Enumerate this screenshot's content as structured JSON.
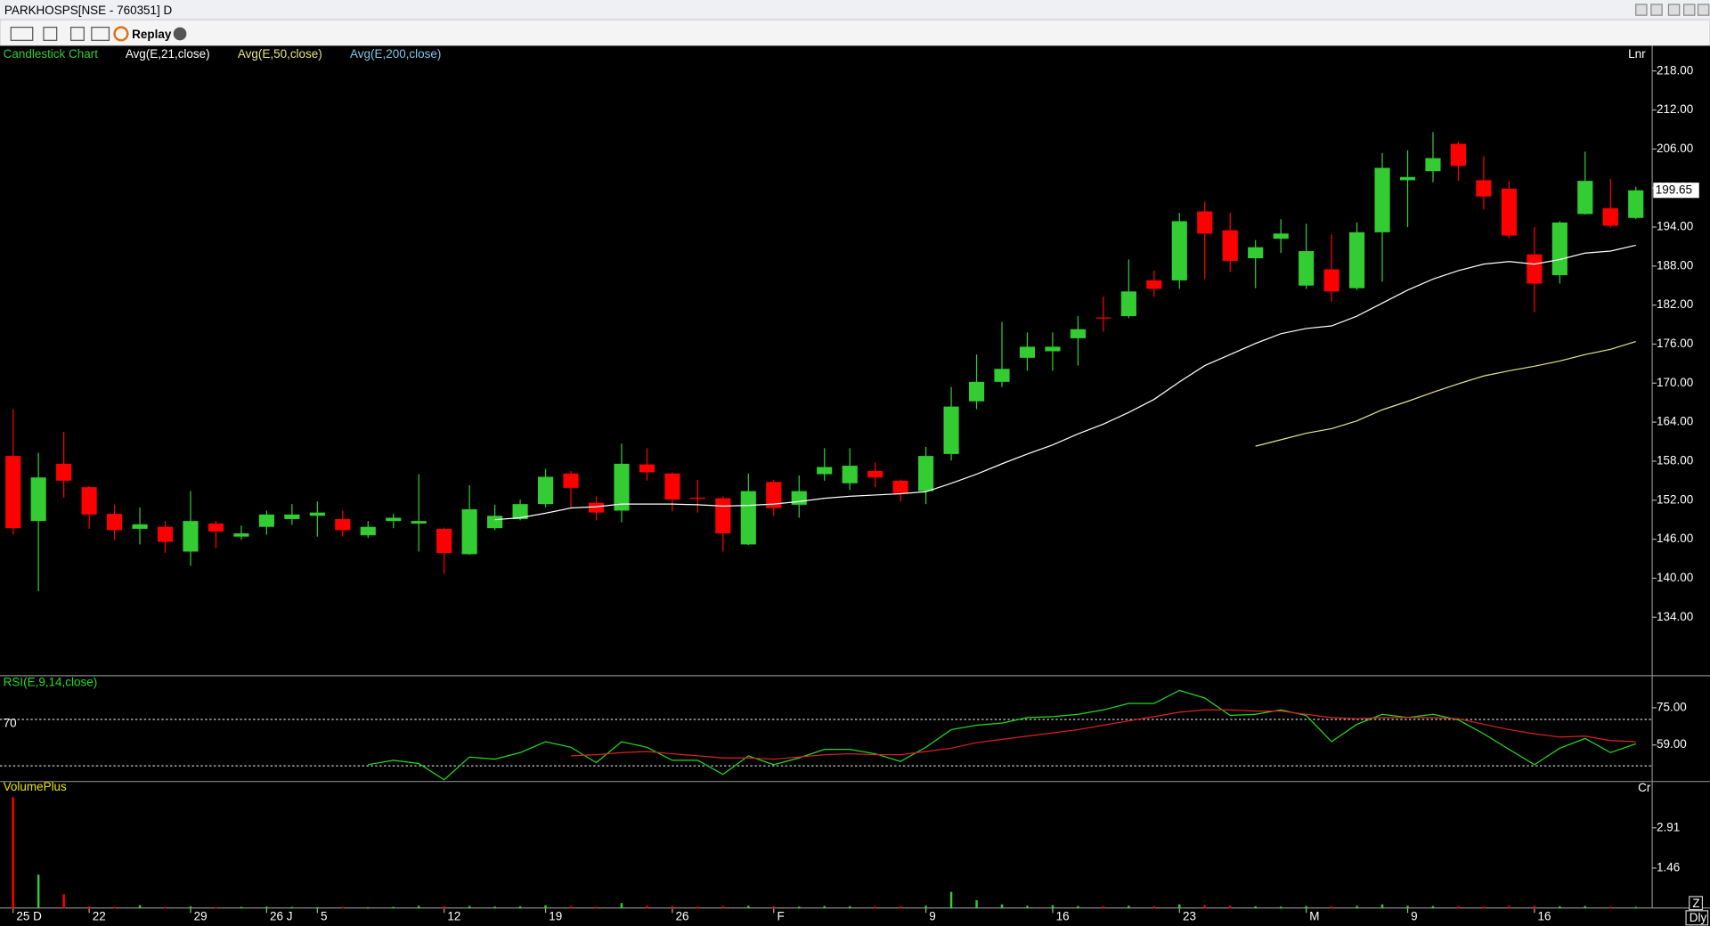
{
  "window": {
    "title": "PARKHOSPS[NSE - 760351] D",
    "replay": "Replay",
    "scale_label": "Lnr",
    "unit_label": "Cr",
    "zoom_label": "Z",
    "period_label": "Dly"
  },
  "chart_data": [
    {
      "type": "candlestick",
      "title": "Candlestick Chart",
      "up_color": "#33cc33",
      "down_color": "#ff0000",
      "categories": [
        "25 D",
        null,
        null,
        "22",
        null,
        null,
        null,
        "29",
        null,
        null,
        "26 J",
        null,
        "5",
        null,
        null,
        null,
        null,
        "12",
        null,
        null,
        null,
        "19",
        null,
        null,
        null,
        null,
        "26",
        null,
        null,
        null,
        "F",
        null,
        null,
        null,
        null,
        null,
        "9",
        null,
        null,
        null,
        null,
        "16",
        null,
        null,
        null,
        null,
        "23",
        null,
        null,
        null,
        null,
        "M",
        null,
        null,
        null,
        "9",
        null,
        null,
        null,
        null,
        "16",
        null,
        null,
        null,
        null
      ],
      "open": [
        158.8,
        148.8,
        157.6,
        154.0,
        149.9,
        147.6,
        147.9,
        144.1,
        148.4,
        146.4,
        147.9,
        149.1,
        149.6,
        149.1,
        146.6,
        148.8,
        148.4,
        147.6,
        143.7,
        147.7,
        149.1,
        151.4,
        156.1,
        151.6,
        150.4,
        157.5,
        156.1,
        152.4,
        152.3,
        145.2,
        154.8,
        151.3,
        156.0,
        154.6,
        156.5,
        155.0,
        153.4,
        159.1,
        167.2,
        170.2,
        173.9,
        174.9,
        176.9,
        180.1,
        180.3,
        185.8,
        185.8,
        196.4,
        193.5,
        189.2,
        192.2,
        185.0,
        187.5,
        184.6,
        193.2,
        201.2,
        202.6,
        206.8,
        201.2,
        199.9,
        189.8,
        186.6,
        196.0,
        196.9,
        195.4
      ],
      "high": [
        166.0,
        159.3,
        162.5,
        154.2,
        151.3,
        150.9,
        148.8,
        153.4,
        148.8,
        148.1,
        150.4,
        151.4,
        151.8,
        150.4,
        148.8,
        149.9,
        156.0,
        147.8,
        154.3,
        151.3,
        152.1,
        156.8,
        156.5,
        152.6,
        160.7,
        160.0,
        156.3,
        155.1,
        152.6,
        156.1,
        155.1,
        155.8,
        160.0,
        160.0,
        157.8,
        155.2,
        160.2,
        169.4,
        174.4,
        179.4,
        177.8,
        177.8,
        180.3,
        183.3,
        189.0,
        187.3,
        196.2,
        197.9,
        196.2,
        192.0,
        195.2,
        194.5,
        192.9,
        194.7,
        205.4,
        205.8,
        208.6,
        207.1,
        204.9,
        201.1,
        194.0,
        194.9,
        205.6,
        201.4,
        200.2
      ],
      "low": [
        146.7,
        138.0,
        152.4,
        147.6,
        145.9,
        145.2,
        143.9,
        141.9,
        144.6,
        145.9,
        146.7,
        148.2,
        146.4,
        146.4,
        146.2,
        147.7,
        144.1,
        140.7,
        143.6,
        147.4,
        148.9,
        150.9,
        150.9,
        148.9,
        148.6,
        155.0,
        150.3,
        150.1,
        144.1,
        145.1,
        149.6,
        149.3,
        155.0,
        153.6,
        154.0,
        151.8,
        151.4,
        158.1,
        166.0,
        169.4,
        171.9,
        171.9,
        172.7,
        177.9,
        180.0,
        183.3,
        184.5,
        186.0,
        187.1,
        184.6,
        190.0,
        184.5,
        182.5,
        184.3,
        185.6,
        194.0,
        200.9,
        201.1,
        196.7,
        192.3,
        180.9,
        185.3,
        195.9,
        193.9,
        195.2
      ],
      "close": [
        147.7,
        155.5,
        155.0,
        149.8,
        147.4,
        148.3,
        145.6,
        148.8,
        147.2,
        146.9,
        149.8,
        149.8,
        150.1,
        147.4,
        147.9,
        149.3,
        148.8,
        143.9,
        150.6,
        149.6,
        151.4,
        155.6,
        153.9,
        150.1,
        157.6,
        156.3,
        152.1,
        152.3,
        146.9,
        153.4,
        150.8,
        153.4,
        157.1,
        157.3,
        155.5,
        153.1,
        158.8,
        166.4,
        170.2,
        172.2,
        175.6,
        175.6,
        178.3,
        180.0,
        184.1,
        184.5,
        194.9,
        193.0,
        188.8,
        190.9,
        193.0,
        190.3,
        184.1,
        193.2,
        203.1,
        201.7,
        204.6,
        203.4,
        198.7,
        192.7,
        185.3,
        194.7,
        201.1,
        194.2,
        199.65
      ],
      "series": [
        {
          "name": "Avg(E,21,close)",
          "color": "#ffffff",
          "values": [
            null,
            null,
            null,
            null,
            null,
            null,
            null,
            null,
            null,
            null,
            null,
            null,
            null,
            null,
            null,
            null,
            null,
            null,
            null,
            149.0,
            149.3,
            150.0,
            150.8,
            151.0,
            151.4,
            151.4,
            151.4,
            151.3,
            151.1,
            151.2,
            151.4,
            151.8,
            152.3,
            152.6,
            152.8,
            153.0,
            153.3,
            154.6,
            156.0,
            157.6,
            159.1,
            160.5,
            162.2,
            163.7,
            165.5,
            167.5,
            170.2,
            172.7,
            174.4,
            176.1,
            177.6,
            178.4,
            178.8,
            180.3,
            182.3,
            184.3,
            186.0,
            187.3,
            188.3,
            188.7,
            188.3,
            189.0,
            190.0,
            190.3,
            191.2
          ]
        },
        {
          "name": "Avg(E,50,close)",
          "color": "#e6e68c",
          "values": [
            null,
            null,
            null,
            null,
            null,
            null,
            null,
            null,
            null,
            null,
            null,
            null,
            null,
            null,
            null,
            null,
            null,
            null,
            null,
            null,
            null,
            null,
            null,
            null,
            null,
            null,
            null,
            null,
            null,
            null,
            null,
            null,
            null,
            null,
            null,
            null,
            null,
            null,
            null,
            null,
            null,
            null,
            null,
            null,
            null,
            null,
            null,
            null,
            null,
            160.3,
            161.3,
            162.3,
            163.0,
            164.2,
            165.9,
            167.2,
            168.6,
            169.9,
            171.1,
            171.9,
            172.6,
            173.4,
            174.4,
            175.2,
            176.4
          ]
        },
        {
          "name": "Avg(E,200,close)",
          "color": "#80c8ec",
          "values": [
            null,
            null,
            null,
            null,
            null,
            null,
            null,
            null,
            null,
            null,
            null,
            null,
            null,
            null,
            null,
            null,
            null,
            null,
            null,
            null,
            null,
            null,
            null,
            null,
            null,
            null,
            null,
            null,
            null,
            null,
            null,
            null,
            null,
            null,
            null,
            null,
            null,
            null,
            null,
            null,
            null,
            null,
            null,
            null,
            null,
            null,
            null,
            null,
            null,
            null,
            null,
            null,
            null,
            null,
            null,
            null,
            null,
            null,
            null,
            null,
            null,
            null,
            null,
            null,
            null
          ]
        }
      ],
      "ylim": [
        125.1,
        221.7
      ],
      "yticks": [
        {
          "value": 218,
          "label": "218.00"
        },
        {
          "value": 212,
          "label": "212.00"
        },
        {
          "value": 206,
          "label": "206.00"
        },
        {
          "value": 200,
          "label": "200.00"
        },
        {
          "value": 194,
          "label": "194.00"
        },
        {
          "value": 188,
          "label": "188.00"
        },
        {
          "value": 182,
          "label": "182.00"
        },
        {
          "value": 176,
          "label": "176.00"
        },
        {
          "value": 170,
          "label": "170.00"
        },
        {
          "value": 164,
          "label": "164.00"
        },
        {
          "value": 158,
          "label": "158.00"
        },
        {
          "value": 152,
          "label": "152.00"
        },
        {
          "value": 146,
          "label": "146.00"
        },
        {
          "value": 140,
          "label": "140.00"
        },
        {
          "value": 134,
          "label": "134.00"
        }
      ]
    },
    {
      "type": "line",
      "title": "RSI(E,9,14,close)",
      "upper_level": 70,
      "lower_level": 50,
      "series": [
        {
          "color": "#22dd22",
          "values": [
            null,
            null,
            null,
            null,
            null,
            null,
            null,
            null,
            null,
            null,
            null,
            null,
            null,
            null,
            50.5,
            52.4,
            51.0,
            44.0,
            53.8,
            52.9,
            55.7,
            60.4,
            58.0,
            51.4,
            60.4,
            58.0,
            52.4,
            52.4,
            46.3,
            54.3,
            50.5,
            53.4,
            57.1,
            57.1,
            55.2,
            51.9,
            58.0,
            65.6,
            67.5,
            68.4,
            70.8,
            71.2,
            72.2,
            74.1,
            76.9,
            76.9,
            82.5,
            79.2,
            71.7,
            72.2,
            74.1,
            71.7,
            60.4,
            67.9,
            72.2,
            70.8,
            72.2,
            69.8,
            63.8,
            57.1,
            50.5,
            57.6,
            61.8,
            55.7,
            59.5
          ]
        },
        {
          "color": "#dd2222",
          "values": [
            null,
            null,
            null,
            null,
            null,
            null,
            null,
            null,
            null,
            null,
            null,
            null,
            null,
            null,
            null,
            null,
            null,
            null,
            null,
            null,
            null,
            null,
            54.3,
            54.8,
            55.7,
            56.2,
            55.2,
            54.3,
            53.4,
            53.4,
            52.9,
            53.8,
            54.8,
            55.2,
            54.8,
            54.8,
            56.2,
            57.6,
            60.0,
            61.4,
            62.8,
            64.2,
            65.6,
            67.5,
            69.4,
            71.2,
            73.1,
            74.1,
            74.1,
            73.6,
            73.6,
            72.2,
            70.8,
            70.3,
            70.8,
            70.8,
            70.8,
            70.3,
            67.9,
            65.6,
            63.8,
            62.4,
            62.8,
            60.9,
            60.4
          ]
        }
      ],
      "ylim": [
        43.5,
        88.6
      ],
      "yticks": [
        {
          "value": 75,
          "label": "75.00"
        },
        {
          "value": 59,
          "label": "59.00"
        }
      ]
    },
    {
      "type": "bar",
      "title": "VolumePlus",
      "values": [
        4.01,
        1.22,
        0.52,
        0.08,
        0.06,
        0.12,
        0.06,
        0.08,
        0.05,
        0.06,
        0.07,
        0.06,
        0.05,
        0.06,
        0.05,
        0.06,
        0.1,
        0.08,
        0.09,
        0.07,
        0.08,
        0.12,
        0.08,
        0.06,
        0.2,
        0.1,
        0.09,
        0.07,
        0.08,
        0.1,
        0.08,
        0.07,
        0.09,
        0.08,
        0.07,
        0.08,
        0.1,
        0.6,
        0.3,
        0.15,
        0.1,
        0.12,
        0.09,
        0.08,
        0.1,
        0.08,
        0.15,
        0.12,
        0.1,
        0.08,
        0.07,
        0.09,
        0.08,
        0.1,
        0.15,
        0.1,
        0.09,
        0.08,
        0.07,
        0.09,
        0.1,
        0.08,
        0.09,
        0.07,
        0.06
      ],
      "ylim": [
        0,
        4.56
      ],
      "yticks": [
        2.91,
        1.46
      ]
    }
  ]
}
